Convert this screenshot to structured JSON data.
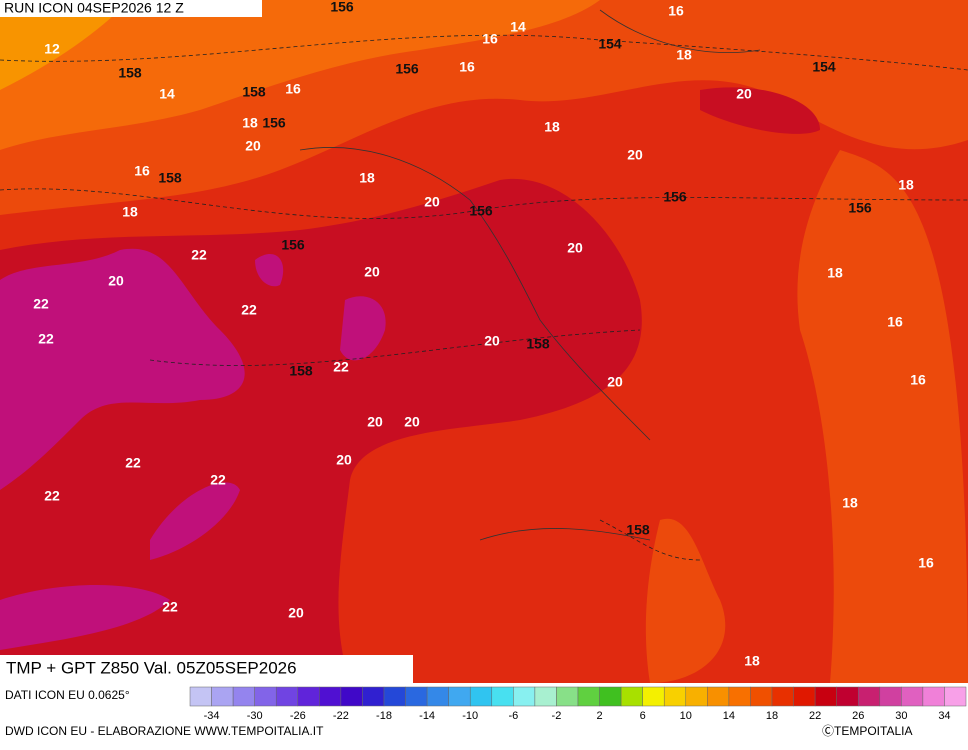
{
  "header": {
    "run": "RUN ICON 04SEP2026 12 Z"
  },
  "contour_labels": {
    "temperature": [
      12,
      14,
      14,
      16,
      16,
      16,
      16,
      18,
      18,
      20,
      16,
      18,
      18,
      18,
      20,
      20,
      20,
      20,
      18,
      18,
      16,
      16,
      22,
      20,
      22,
      20,
      22,
      22,
      22,
      20,
      20,
      20,
      20,
      20,
      22,
      22,
      22,
      18,
      16,
      22,
      20,
      18
    ],
    "geopotential": [
      156,
      154,
      154,
      158,
      156,
      158,
      156,
      158,
      156,
      156,
      156,
      156,
      158,
      158,
      158
    ]
  },
  "footer": {
    "title": "TMP + GPT Z850 Val. 05Z05SEP2026",
    "dataset": "DATI ICON EU 0.0625°",
    "source": "DWD ICON EU - ELABORAZIONE WWW.TEMPOITALIA.IT",
    "copyright": "ⒸTEMPOITALIA"
  },
  "legend": {
    "labels": [
      -34,
      -30,
      -26,
      -22,
      -18,
      -14,
      -10,
      -6,
      -2,
      2,
      6,
      10,
      14,
      18,
      22,
      26,
      30,
      34
    ],
    "colors": [
      "#c4c4f4",
      "#aaa4f2",
      "#9484ee",
      "#8264e8",
      "#7044e2",
      "#6024da",
      "#5010d2",
      "#4008c8",
      "#3020d0",
      "#2448d8",
      "#2a68e0",
      "#3488e8",
      "#40a8f0",
      "#30c4f0",
      "#48e0f0",
      "#88f0f0",
      "#a8f0d0",
      "#88e088",
      "#60d040",
      "#40c020",
      "#a8e000",
      "#f4f000",
      "#f8d000",
      "#f8b000",
      "#f89000",
      "#f87000",
      "#f05000",
      "#e83000",
      "#e01800",
      "#c80010",
      "#c00030",
      "#c82070",
      "#d040a0",
      "#e060c0",
      "#f080d8",
      "#f8a0e8"
    ]
  }
}
